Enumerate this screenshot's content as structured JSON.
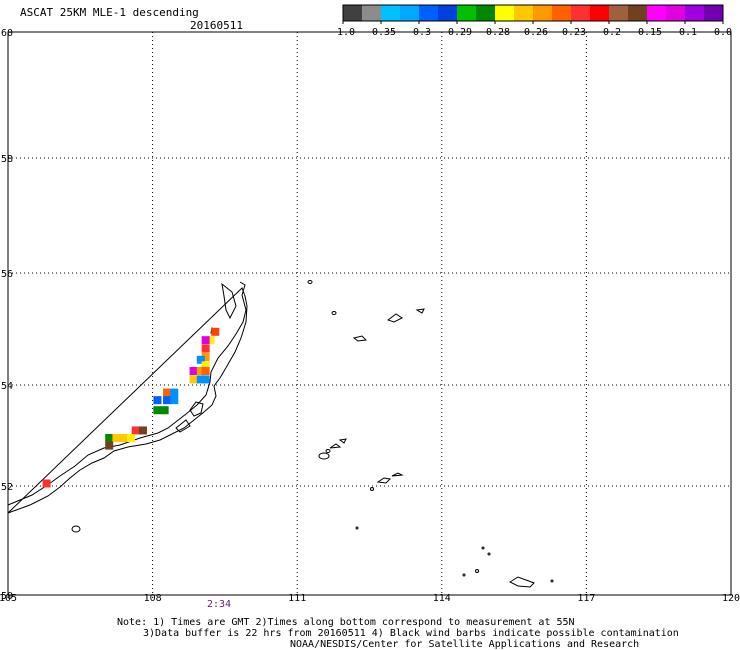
{
  "header": {
    "title": "ASCAT 25KM MLE-1 descending",
    "date": "20160511"
  },
  "colorbar": {
    "colors": [
      "#404040",
      "#8c8c8c",
      "#00c0ff",
      "#00a8ff",
      "#0060ff",
      "#0040e0",
      "#00c000",
      "#008800",
      "#ffff00",
      "#ffc800",
      "#ff9900",
      "#ff6000",
      "#ff3030",
      "#ff0000",
      "#a06040",
      "#704020",
      "#ff00ff",
      "#e000e0",
      "#a000e0",
      "#7000b0"
    ],
    "labels": [
      "-1.0",
      "-0.35",
      "-0.3",
      "-0.29",
      "-0.28",
      "-0.26",
      "-0.23",
      "-0.2",
      "-0.15",
      "-0.1",
      "0.0"
    ]
  },
  "map": {
    "lon_labels": [
      "105",
      "108",
      "111",
      "114",
      "117",
      "120"
    ],
    "lat_labels": [
      "60",
      "58",
      "56",
      "54",
      "52",
      "50"
    ],
    "time_label": "2:34",
    "cells": [
      {
        "lon": 109.3,
        "lat": 54.95,
        "color": "#ff4000"
      },
      {
        "lon": 109.2,
        "lat": 54.8,
        "color": "#ffee00"
      },
      {
        "lon": 109.1,
        "lat": 54.8,
        "color": "#e000e0"
      },
      {
        "lon": 109.1,
        "lat": 54.65,
        "color": "#ff3030"
      },
      {
        "lon": 109.1,
        "lat": 54.5,
        "color": "#ff9900"
      },
      {
        "lon": 109.0,
        "lat": 54.45,
        "color": "#0090ff"
      },
      {
        "lon": 109.1,
        "lat": 54.35,
        "color": "#ffee00"
      },
      {
        "lon": 108.85,
        "lat": 54.25,
        "color": "#e000e0"
      },
      {
        "lon": 109.0,
        "lat": 54.25,
        "color": "#ff9900"
      },
      {
        "lon": 109.1,
        "lat": 54.25,
        "color": "#ff6000"
      },
      {
        "lon": 108.85,
        "lat": 54.1,
        "color": "#ffc800"
      },
      {
        "lon": 109.0,
        "lat": 54.1,
        "color": "#0090ff"
      },
      {
        "lon": 109.1,
        "lat": 54.1,
        "color": "#0090ff"
      },
      {
        "lon": 108.3,
        "lat": 53.85,
        "color": "#ff6000"
      },
      {
        "lon": 108.45,
        "lat": 53.85,
        "color": "#0090ff"
      },
      {
        "lon": 108.1,
        "lat": 53.7,
        "color": "#0060ff"
      },
      {
        "lon": 108.3,
        "lat": 53.7,
        "color": "#0060ff"
      },
      {
        "lon": 108.45,
        "lat": 53.7,
        "color": "#0090ff"
      },
      {
        "lon": 108.1,
        "lat": 53.5,
        "color": "#008800"
      },
      {
        "lon": 108.25,
        "lat": 53.5,
        "color": "#008800"
      },
      {
        "lon": 107.65,
        "lat": 53.1,
        "color": "#ff3030"
      },
      {
        "lon": 107.8,
        "lat": 53.1,
        "color": "#704020"
      },
      {
        "lon": 107.1,
        "lat": 52.95,
        "color": "#008800"
      },
      {
        "lon": 107.25,
        "lat": 52.95,
        "color": "#ffc800"
      },
      {
        "lon": 107.4,
        "lat": 52.95,
        "color": "#ffc800"
      },
      {
        "lon": 107.55,
        "lat": 52.95,
        "color": "#ffee00"
      },
      {
        "lon": 107.1,
        "lat": 52.8,
        "color": "#704020"
      },
      {
        "lon": 105.8,
        "lat": 52.05,
        "color": "#ff3030"
      }
    ]
  },
  "notes": [
    "Note: 1) Times are GMT 2)Times along bottom correspond to measurement at 55N",
    "3)Data buffer is 22 hrs from 20160511 4) Black wind barbs indicate possible contamination",
    "NOAA/NESDIS/Center for Satellite Applications and Research"
  ]
}
